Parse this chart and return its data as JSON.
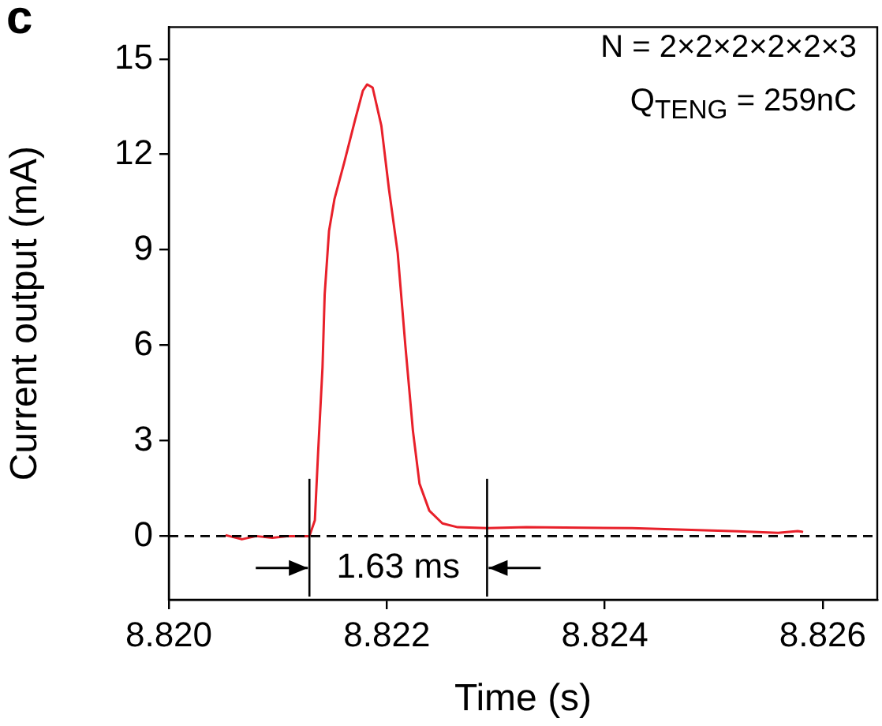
{
  "chart_data": {
    "type": "line",
    "xlabel": "Time (s)",
    "ylabel": "Current output (mA)",
    "xlim": [
      8.82,
      8.8265
    ],
    "xticks": [
      {
        "value": 8.82,
        "label": "8.820"
      },
      8.822,
      8.824,
      8.826
    ],
    "ylim": [
      -2,
      16
    ],
    "yticks": [
      0,
      3,
      6,
      9,
      12,
      15
    ],
    "grid": false,
    "legend": false,
    "marker": "none",
    "line_style": "solid",
    "series": [
      {
        "color": "#e8202a",
        "x": [
          8.82052,
          8.82067,
          8.8208,
          8.82095,
          8.8211,
          8.82129,
          8.82134,
          8.82137,
          8.82141,
          8.82143,
          8.82147,
          8.82152,
          8.82161,
          8.82171,
          8.82178,
          8.82182,
          8.82187,
          8.82195,
          8.82202,
          8.8221,
          8.82217,
          8.82224,
          8.8223,
          8.82239,
          8.82251,
          8.82265,
          8.82292,
          8.82328,
          8.82425,
          8.82522,
          8.82559,
          8.82577,
          8.82582
        ],
        "values": [
          0.03,
          -0.1,
          0.0,
          -0.05,
          0.0,
          0.0,
          0.5,
          2.65,
          5.3,
          7.6,
          9.6,
          10.6,
          11.75,
          13.1,
          14.0,
          14.2,
          14.1,
          12.9,
          10.9,
          8.9,
          6.0,
          3.3,
          1.65,
          0.8,
          0.4,
          0.28,
          0.25,
          0.28,
          0.25,
          0.15,
          0.1,
          0.16,
          0.13
        ]
      }
    ],
    "ref_lines": [
      {
        "axis": "y",
        "value": 0,
        "line_style": "dashed",
        "color": "#000000"
      },
      {
        "axis": "x",
        "value": 8.82129,
        "color": "#000000"
      },
      {
        "axis": "x",
        "value": 8.82292,
        "color": "#000000"
      }
    ],
    "annotations": [
      "c",
      "N = 2×2×2×2×2×3",
      "Q$_{TENG}$ = 259nC",
      "1.63 ms"
    ]
  }
}
